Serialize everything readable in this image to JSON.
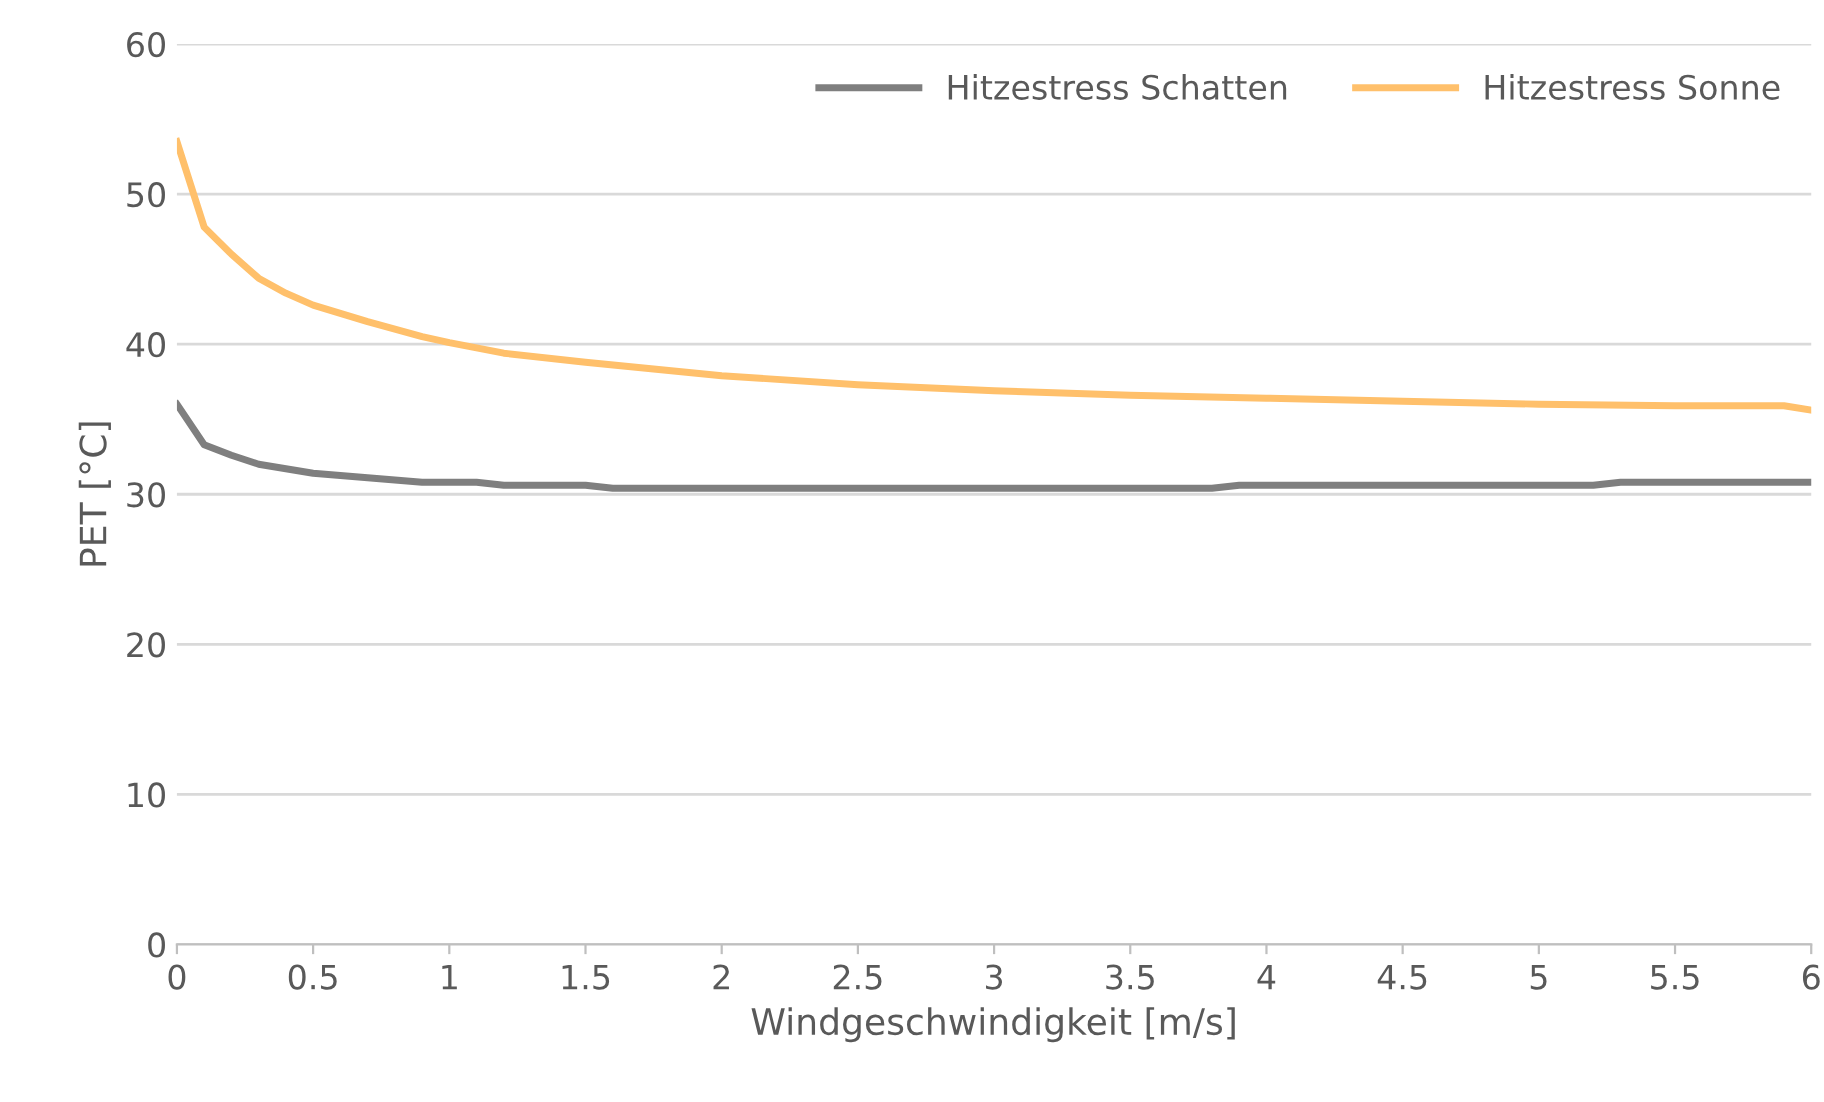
{
  "chart_data": {
    "type": "line",
    "xlabel": "Windgeschwindigkeit [m/s]",
    "ylabel": "PET [°C]",
    "xlim": [
      0,
      6
    ],
    "xticks": [
      0,
      0.5,
      1,
      1.5,
      2,
      2.5,
      3,
      3.5,
      4,
      4.5,
      5,
      5.5,
      6
    ],
    "ylim": [
      0,
      60
    ],
    "yticks": [
      0,
      10,
      20,
      30,
      40,
      50,
      60
    ],
    "grid": "y",
    "legend": "top right",
    "marker": "none",
    "line_style": "solid",
    "series": [
      {
        "name": "Hitzestress Schatten",
        "color": "#7f7f7f",
        "x": [
          0,
          0.1,
          0.2,
          0.3,
          0.5,
          0.7,
          0.9,
          1.1,
          1.2,
          1.5,
          1.6,
          2,
          2.5,
          3,
          3.5,
          3.8,
          3.9,
          4.5,
          5,
          5.2,
          5.3,
          6
        ],
        "values": [
          36,
          33.3,
          32.6,
          32.0,
          31.4,
          31.1,
          30.8,
          30.8,
          30.6,
          30.6,
          30.4,
          30.4,
          30.4,
          30.4,
          30.4,
          30.4,
          30.6,
          30.6,
          30.6,
          30.6,
          30.8,
          30.8
        ]
      },
      {
        "name": "Hitzestress Sonne",
        "color": "#ffc06b",
        "x": [
          0,
          0.1,
          0.2,
          0.3,
          0.4,
          0.5,
          0.7,
          0.9,
          1,
          1.2,
          1.5,
          2,
          2.5,
          3,
          3.5,
          4,
          4.5,
          5,
          5.5,
          5.9,
          6
        ],
        "values": [
          53.5,
          47.8,
          46,
          44.4,
          43.4,
          42.6,
          41.5,
          40.5,
          40.1,
          39.4,
          38.8,
          37.9,
          37.3,
          36.9,
          36.6,
          36.4,
          36.2,
          36.0,
          35.9,
          35.9,
          35.6
        ]
      }
    ]
  }
}
